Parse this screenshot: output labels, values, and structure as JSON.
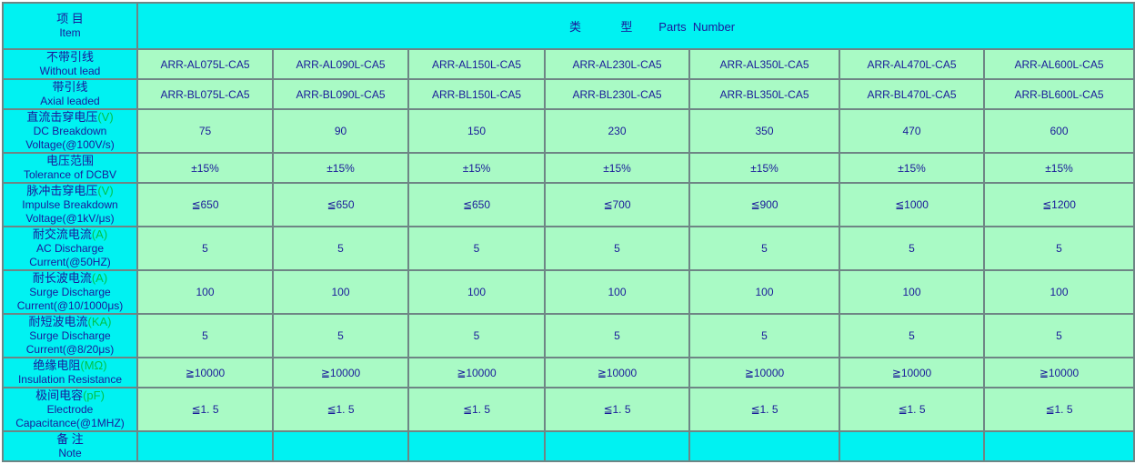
{
  "colors": {
    "cyan_bg": "#00F2F2",
    "green_bg": "#A9FAC5",
    "text_navy": "#1A1A99",
    "unit_green": "#00C24A",
    "border": "#6E8585",
    "page_bg": "#FFFFFF"
  },
  "header": {
    "item_cn": "项 目",
    "item_en": "Item",
    "type_label": "类            型        Parts  Number"
  },
  "rows": [
    {
      "name": "without-lead",
      "cn": "不带引线",
      "unit": "",
      "en1": "Without lead",
      "en2": "",
      "lines": 2,
      "cell_bg": "green",
      "values": [
        "ARR-AL075L-CA5",
        "ARR-AL090L-CA5",
        "ARR-AL150L-CA5",
        "ARR-AL230L-CA5",
        "ARR-AL350L-CA5",
        "ARR-AL470L-CA5",
        "ARR-AL600L-CA5"
      ]
    },
    {
      "name": "axial-leaded",
      "cn": "带引线",
      "unit": "",
      "en1": "Axial leaded",
      "en2": "",
      "lines": 2,
      "cell_bg": "green",
      "values": [
        "ARR-BL075L-CA5",
        "ARR-BL090L-CA5",
        "ARR-BL150L-CA5",
        "ARR-BL230L-CA5",
        "ARR-BL350L-CA5",
        "ARR-BL470L-CA5",
        "ARR-BL600L-CA5"
      ]
    },
    {
      "name": "dc-breakdown-voltage",
      "cn": "直流击穿电压",
      "unit": "(V)",
      "en1": "DC Breakdown",
      "en2": "Voltage(@100V/s)",
      "lines": 3,
      "cell_bg": "green",
      "values": [
        "75",
        "90",
        "150",
        "230",
        "350",
        "470",
        "600"
      ]
    },
    {
      "name": "tolerance-of-dcbv",
      "cn": "电压范围",
      "unit": "",
      "en1": "Tolerance of DCBV",
      "en2": "",
      "lines": 2,
      "cell_bg": "green",
      "values": [
        "±15%",
        "±15%",
        "±15%",
        "±15%",
        "±15%",
        "±15%",
        "±15%"
      ]
    },
    {
      "name": "impulse-breakdown-voltage",
      "cn": "脉冲击穿电压",
      "unit": "(V)",
      "en1": "Impulse Breakdown",
      "en2": "Voltage(@1kV/μs)",
      "lines": 3,
      "cell_bg": "green",
      "values": [
        "≦650",
        "≦650",
        "≦650",
        "≦700",
        "≦900",
        "≦1000",
        "≦1200"
      ]
    },
    {
      "name": "ac-discharge-current",
      "cn": "耐交流电流",
      "unit": "(A)",
      "en1": "AC Discharge",
      "en2": "Current(@50HZ)",
      "lines": 3,
      "cell_bg": "green",
      "values": [
        "5",
        "5",
        "5",
        "5",
        "5",
        "5",
        "5"
      ]
    },
    {
      "name": "surge-discharge-current-long",
      "cn": "耐长波电流",
      "unit": "(A)",
      "en1": "Surge Discharge",
      "en2": "Current(@10/1000μs)",
      "lines": 3,
      "cell_bg": "green",
      "values": [
        "100",
        "100",
        "100",
        "100",
        "100",
        "100",
        "100"
      ]
    },
    {
      "name": "surge-discharge-current-short",
      "cn": "耐短波电流",
      "unit": "(KA)",
      "en1": "Surge Discharge",
      "en2": "Current(@8/20μs)",
      "lines": 3,
      "cell_bg": "green",
      "values": [
        "5",
        "5",
        "5",
        "5",
        "5",
        "5",
        "5"
      ]
    },
    {
      "name": "insulation-resistance",
      "cn": "绝缘电阻",
      "unit": "(MΩ)",
      "en1": "Insulation Resistance",
      "en2": "",
      "lines": 2,
      "cell_bg": "green",
      "values": [
        "≧10000",
        "≧10000",
        "≧10000",
        "≧10000",
        "≧10000",
        "≧10000",
        "≧10000"
      ]
    },
    {
      "name": "electrode-capacitance",
      "cn": "极间电容",
      "unit": "(pF)",
      "en1": "Electrode",
      "en2": "Capacitance(@1MHZ)",
      "lines": 3,
      "cell_bg": "green",
      "values": [
        "≦1. 5",
        "≦1. 5",
        "≦1. 5",
        "≦1. 5",
        "≦1. 5",
        "≦1. 5",
        "≦1. 5"
      ]
    },
    {
      "name": "note",
      "cn": "备 注",
      "unit": "",
      "en1": "Note",
      "en2": "",
      "lines": 2,
      "cell_bg": "cyan",
      "values": [
        "",
        "",
        "",
        "",
        "",
        "",
        ""
      ]
    }
  ]
}
